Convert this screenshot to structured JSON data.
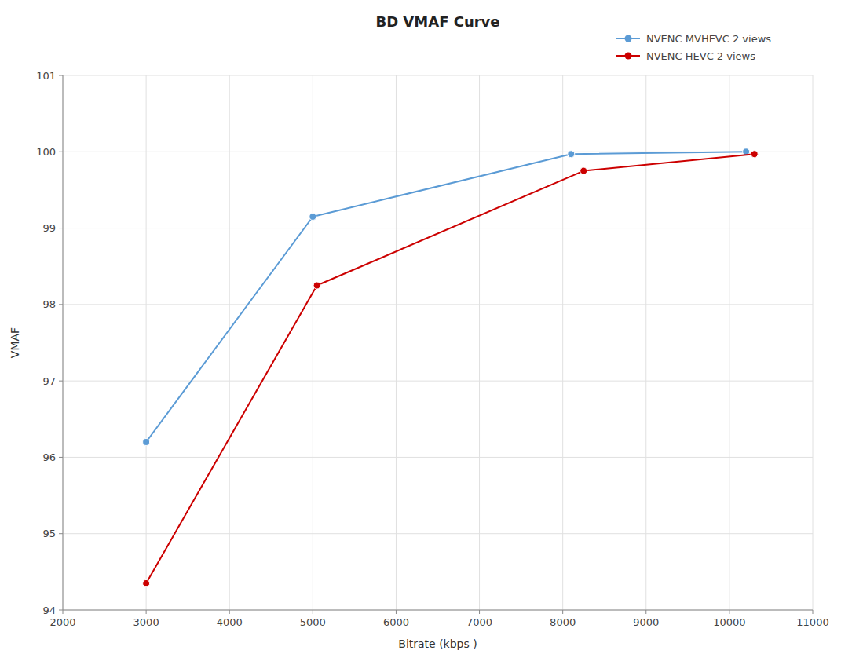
{
  "chart_data": {
    "type": "line",
    "title": "BD VMAF Curve",
    "xlabel": "Bitrate (kbps )",
    "ylabel": "VMAF",
    "series": [
      {
        "name": "NVENC MVHEVC 2 views",
        "color": "#5b9bd5",
        "marker": "circle",
        "x": [
          3000,
          5000,
          8100,
          10200
        ],
        "values": [
          96.2,
          99.15,
          99.97,
          100.0
        ]
      },
      {
        "name": "NVENC HEVC 2 views",
        "color": "#cc0000",
        "marker": "circle",
        "x": [
          3000,
          5050,
          8250,
          10300
        ],
        "values": [
          94.35,
          98.25,
          99.75,
          99.97
        ]
      }
    ],
    "xlim": [
      2000,
      11000
    ],
    "ylim": [
      94,
      101
    ],
    "xticks": [
      2000,
      3000,
      4000,
      5000,
      6000,
      7000,
      8000,
      9000,
      10000,
      11000
    ],
    "yticks": [
      94,
      95,
      96,
      97,
      98,
      99,
      100,
      101
    ],
    "grid": true,
    "legend": "top-right"
  }
}
